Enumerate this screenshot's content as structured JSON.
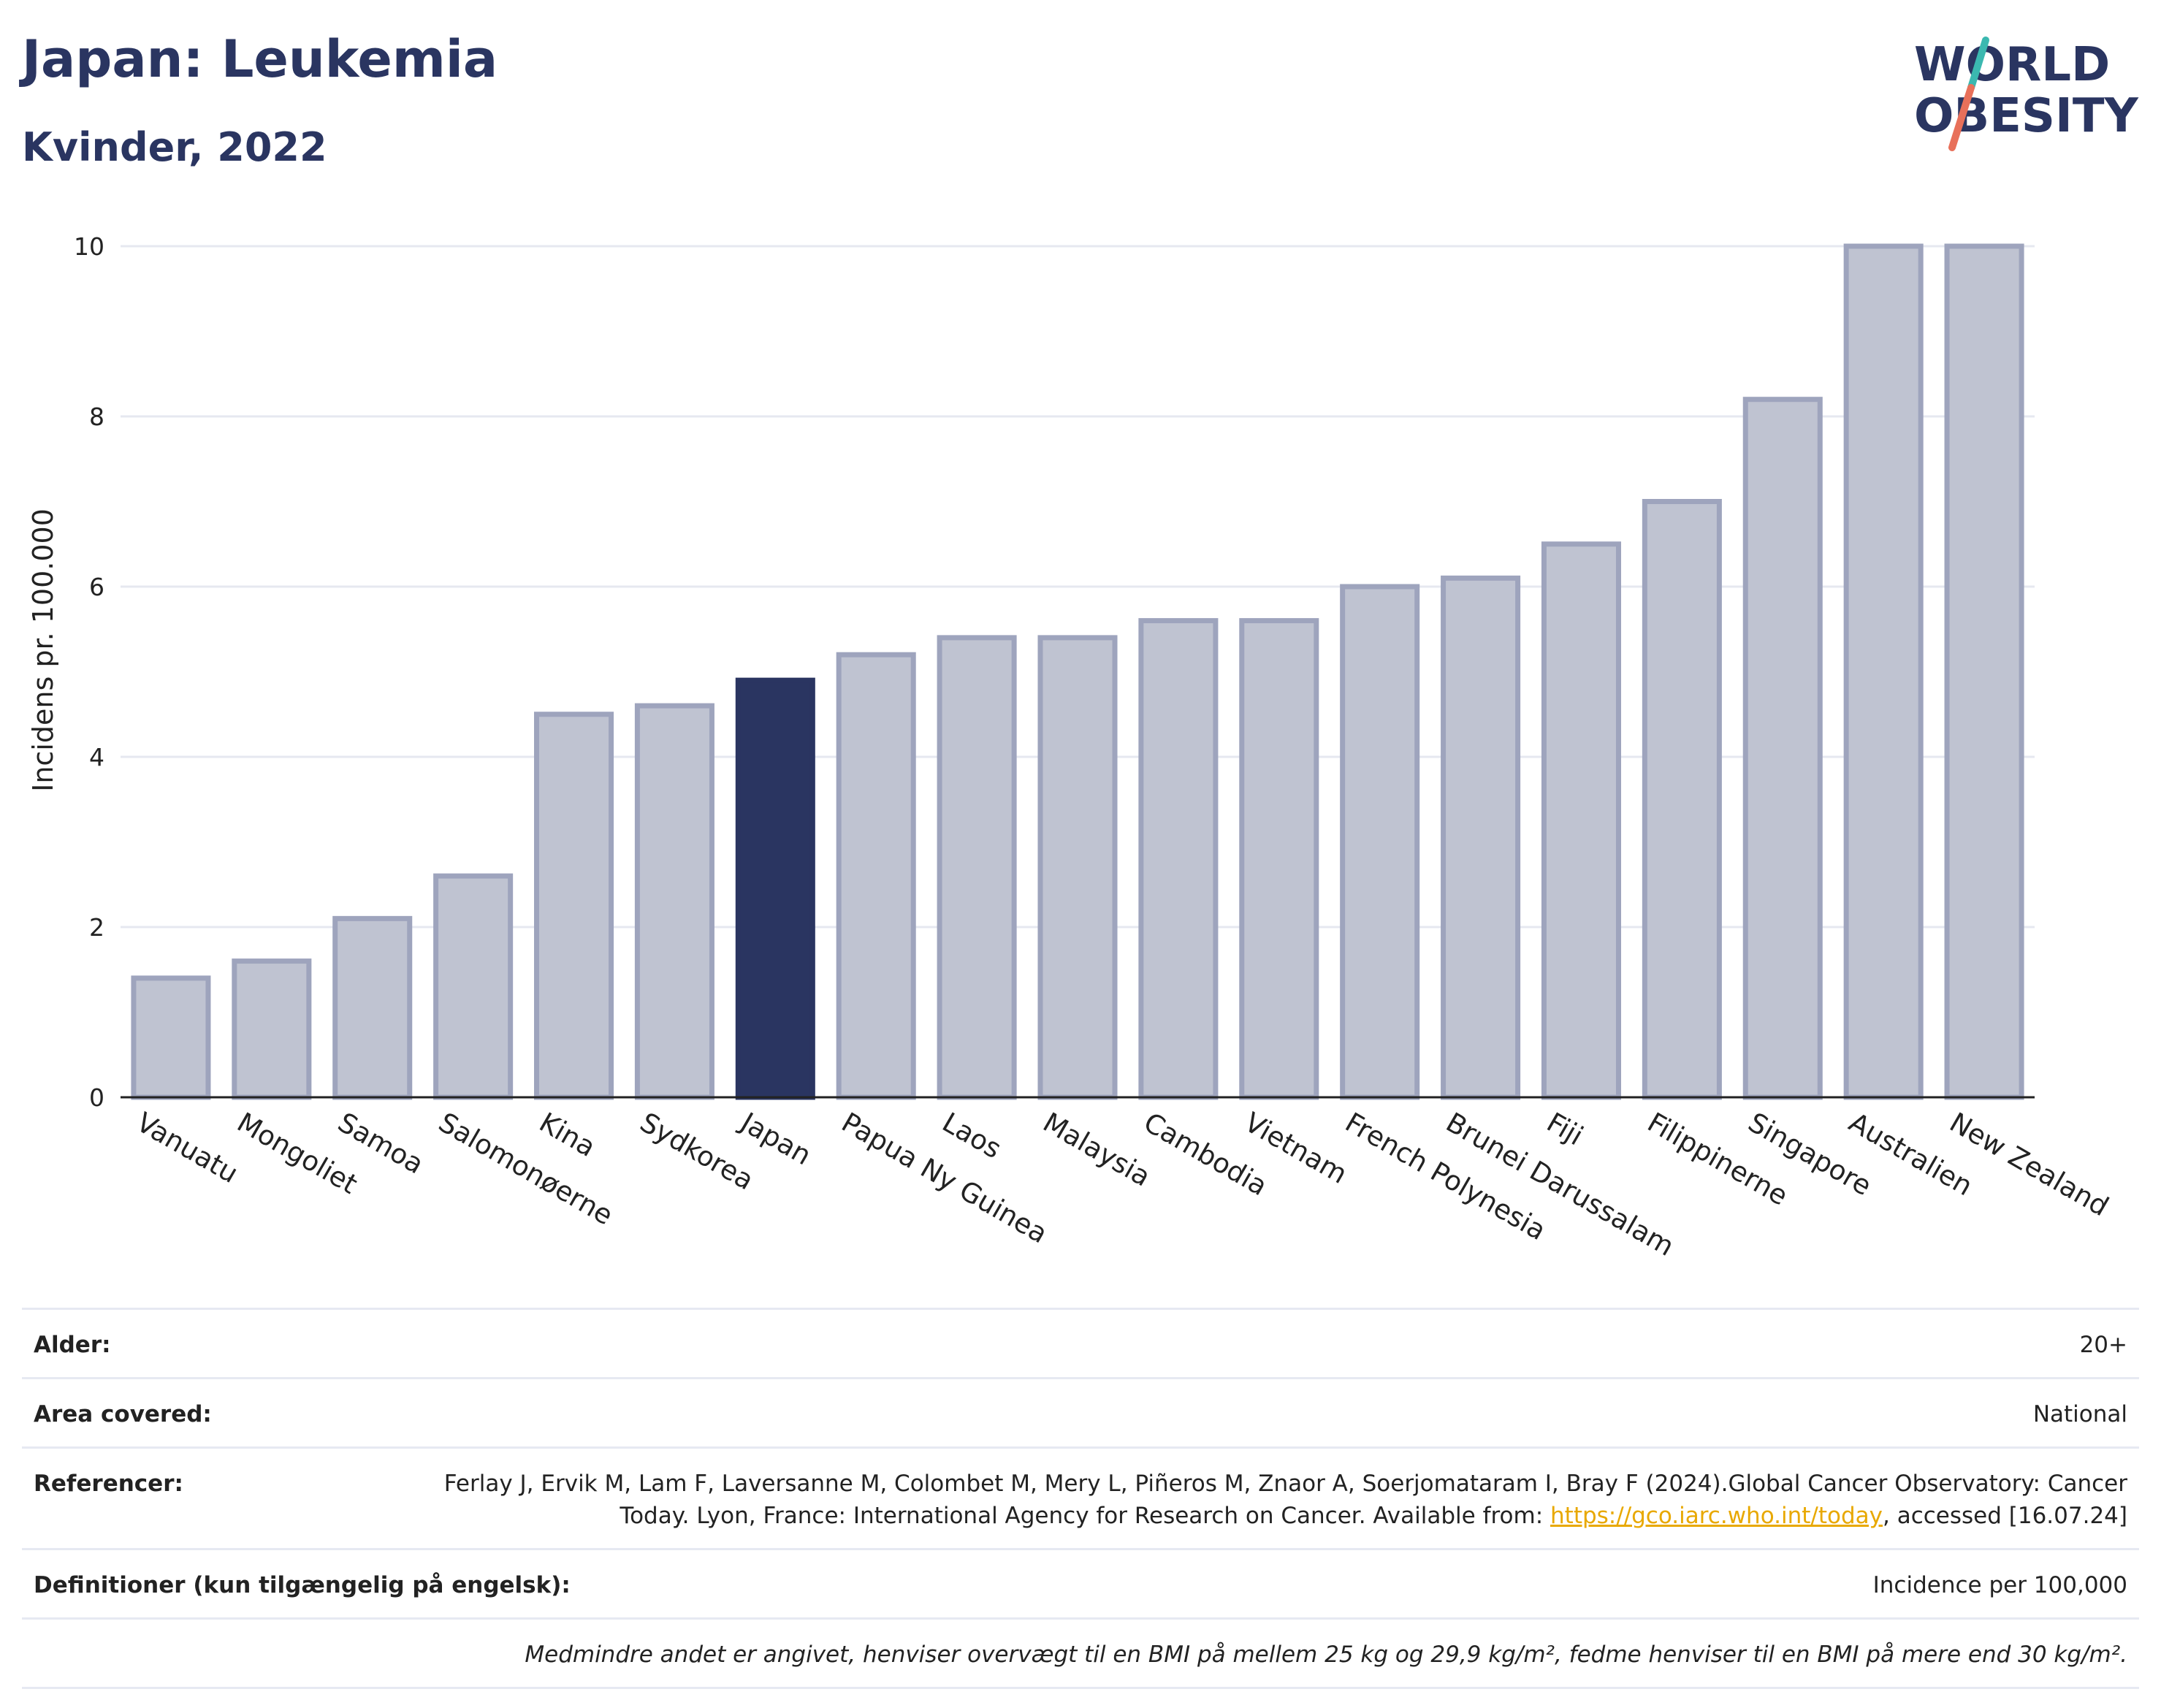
{
  "header": {
    "title": "Japan: Leukemia",
    "subtitle": "Kvinder, 2022"
  },
  "logo": {
    "line1": "WORLD",
    "line2": "OBESITY",
    "icon": "world-obesity-logo-slash"
  },
  "colors": {
    "highlight": "#2a3561",
    "bar": "#bfc3d1",
    "bar_stroke": "#9ea4bd",
    "grid": "#e6e8f0",
    "logo_teal": "#3bb8b0",
    "logo_coral": "#e8705a",
    "link": "#e8a800"
  },
  "chart_data": {
    "type": "bar",
    "ylabel": "Incidens pr. 100.000",
    "ylim": [
      0,
      10
    ],
    "yticks": [
      0,
      2,
      4,
      6,
      8,
      10
    ],
    "grid": true,
    "highlight": "Japan",
    "categories": [
      "Vanuatu",
      "Mongoliet",
      "Samoa",
      "Salomonøerne",
      "Kina",
      "Sydkorea",
      "Japan",
      "Papua Ny Guinea",
      "Laos",
      "Malaysia",
      "Cambodia",
      "Vietnam",
      "French Polynesia",
      "Brunei Darussalam",
      "Fiji",
      "Filippinerne",
      "Singapore",
      "Australien",
      "New Zealand"
    ],
    "values": [
      1.4,
      1.6,
      2.1,
      2.6,
      4.5,
      4.6,
      4.9,
      5.2,
      5.4,
      5.4,
      5.6,
      5.6,
      6.0,
      6.1,
      6.5,
      7.0,
      8.2,
      10.0,
      10.0
    ]
  },
  "meta": {
    "age_label": "Alder:",
    "age_value": "20+",
    "area_label": "Area covered:",
    "area_value": "National",
    "ref_label": "Referencer:",
    "ref_text_1": "Ferlay J, Ervik M, Lam F, Laversanne M, Colombet M, Mery L, Piñeros M, Znaor A, Soerjomataram I, Bray F (2024).Global Cancer Observatory: Cancer Today. Lyon, France: International Agency for Research on Cancer. Available from: ",
    "ref_link": "https://gco.iarc.who.int/today",
    "ref_text_2": ", accessed [16.07.24]",
    "def_label": "Definitioner (kun tilgængelig på engelsk):",
    "def_value": "Incidence per 100,000",
    "note": "Medmindre andet er angivet, henviser overvægt til en BMI på mellem 25 kg og 29,9 kg/m², fedme henviser til en BMI på mere end 30 kg/m²."
  }
}
